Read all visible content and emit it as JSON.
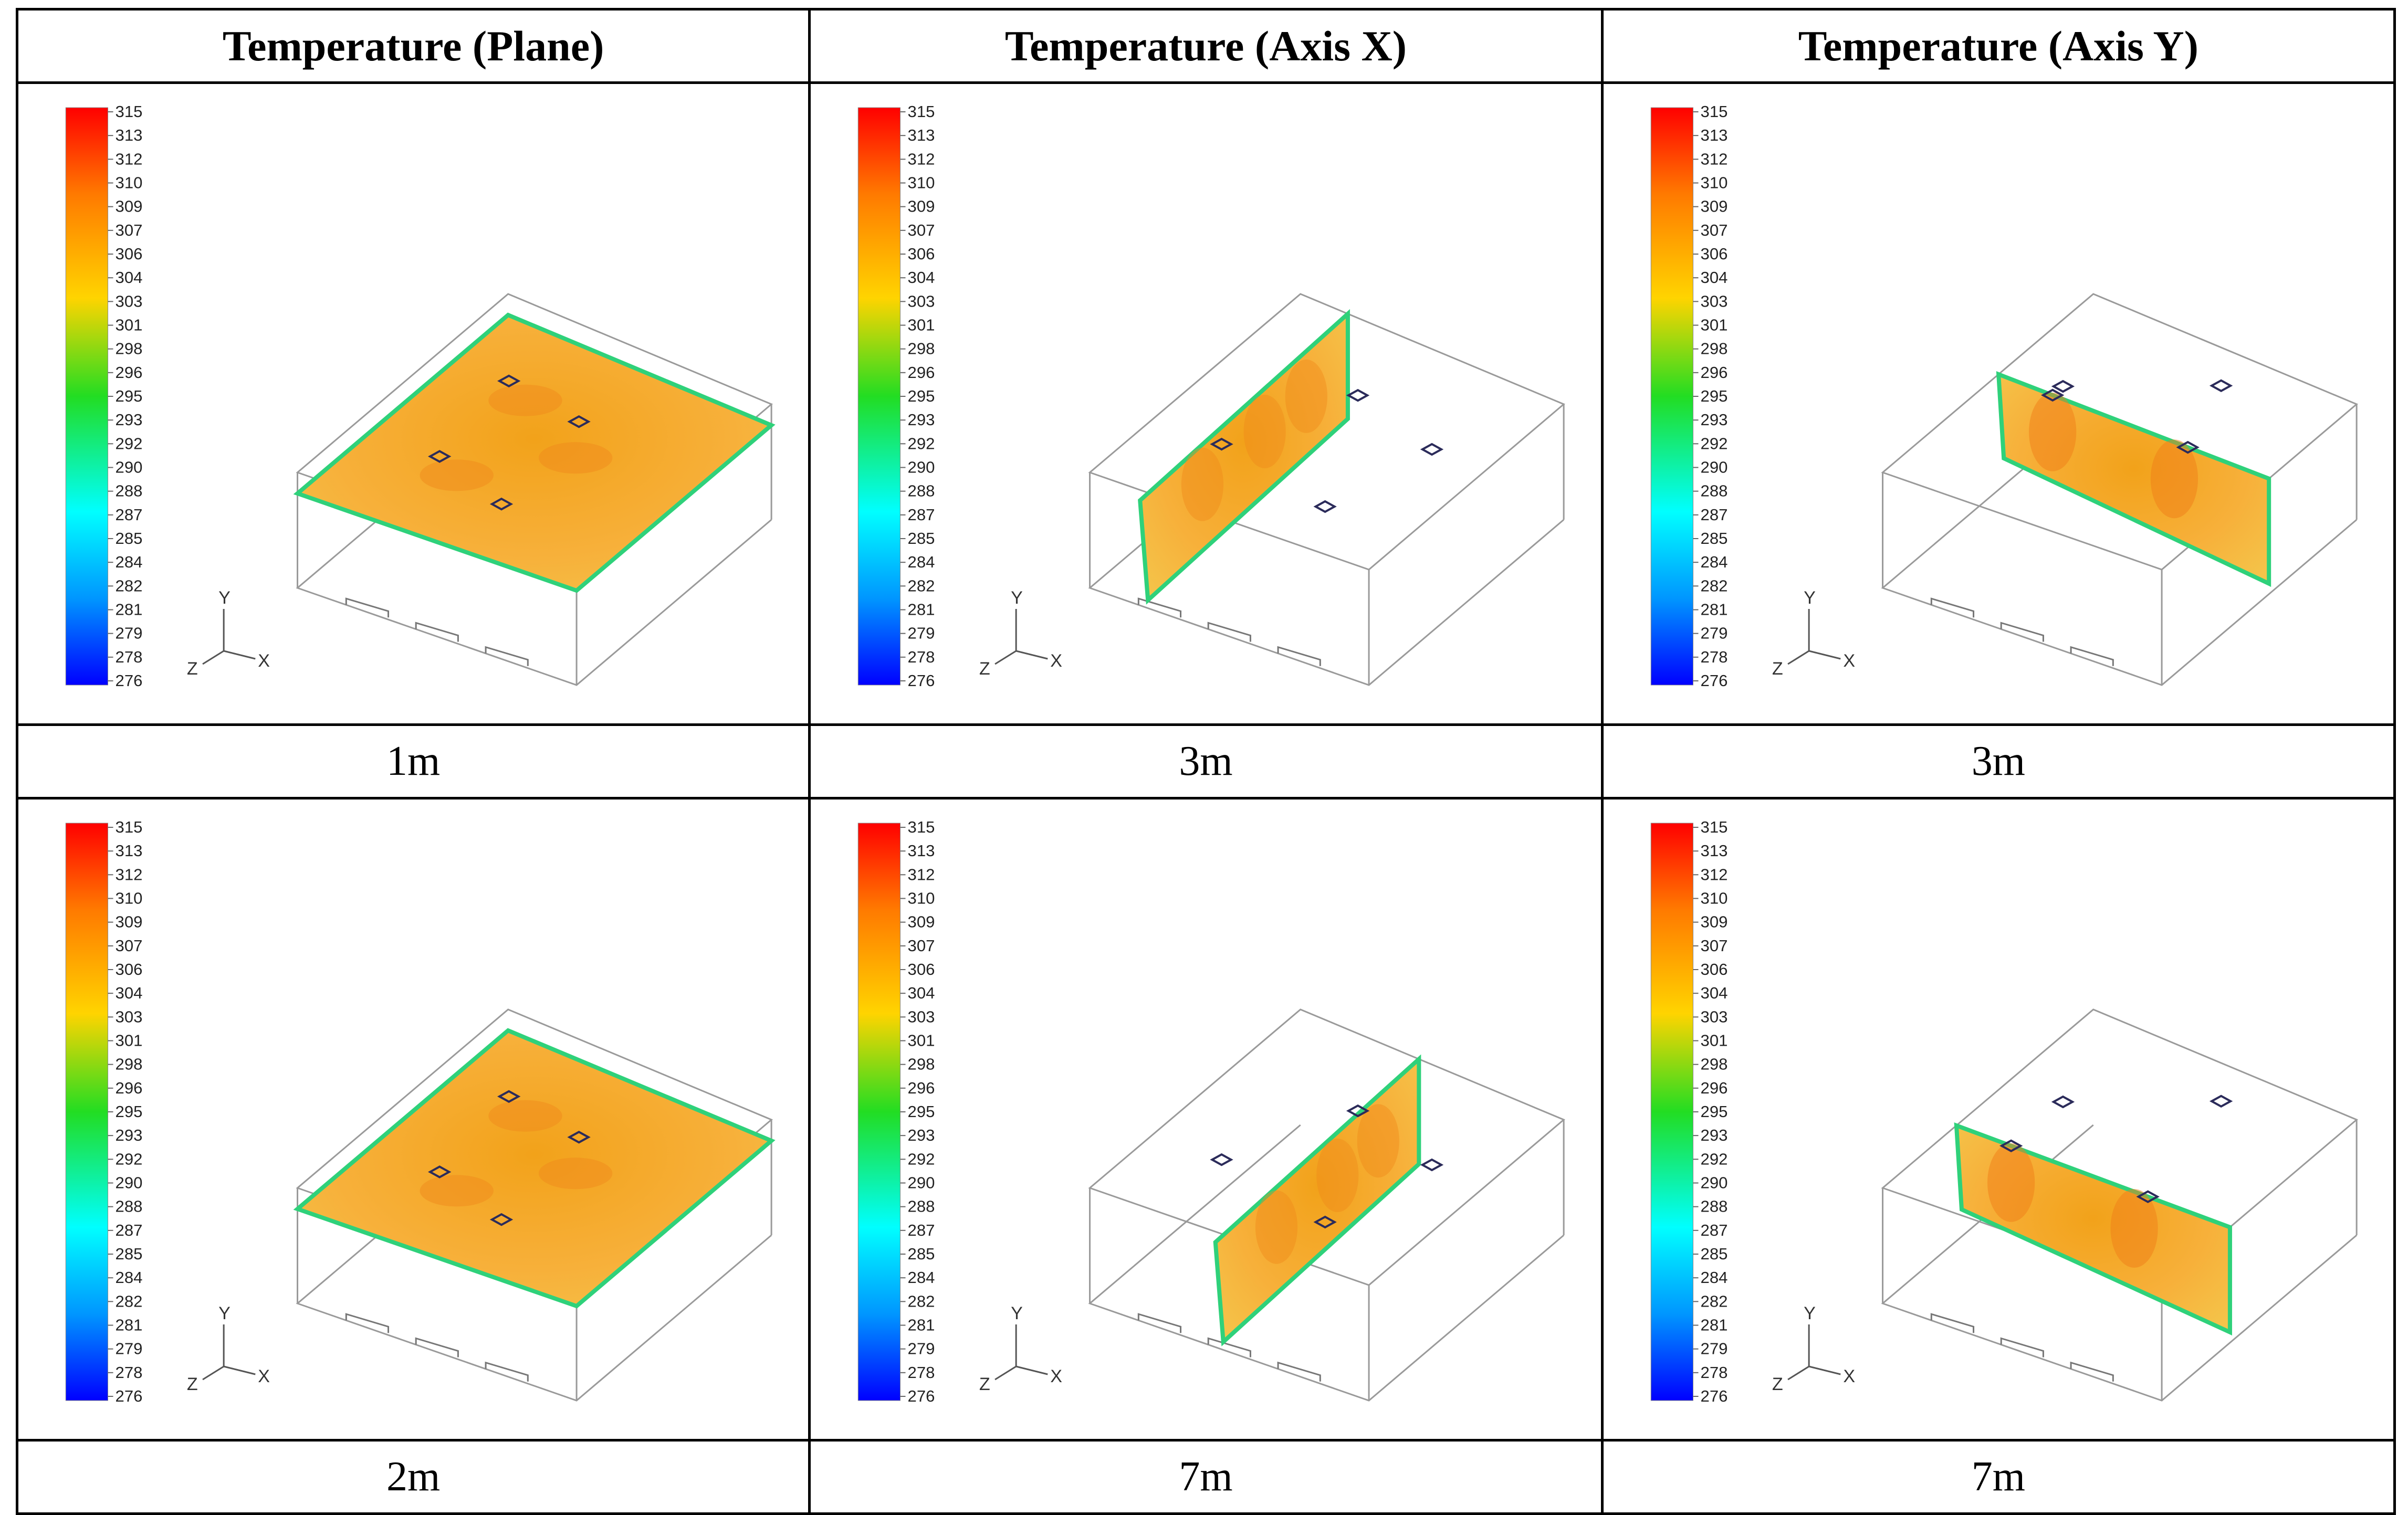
{
  "headers": [
    "Temperature (Plane)",
    "Temperature (Axis X)",
    "Temperature (Axis Y)"
  ],
  "rows": [
    {
      "captions": [
        "1m",
        "3m",
        "3m"
      ]
    },
    {
      "captions": [
        "2m",
        "7m",
        "7m"
      ]
    }
  ],
  "panels": [
    {
      "slice": "plane",
      "vent_style": "top"
    },
    {
      "slice": "x",
      "vent_style": "top"
    },
    {
      "slice": "y",
      "vent_style": "top"
    },
    {
      "slice": "plane",
      "vent_style": "on-slice"
    },
    {
      "slice": "x",
      "vent_style": "top"
    },
    {
      "slice": "y",
      "vent_style": "top"
    }
  ],
  "legend": {
    "values": [
      "315",
      "313",
      "312",
      "310",
      "309",
      "307",
      "306",
      "304",
      "303",
      "301",
      "298",
      "296",
      "295",
      "293",
      "292",
      "290",
      "288",
      "287",
      "285",
      "284",
      "282",
      "281",
      "279",
      "278",
      "276"
    ],
    "colors": {
      "max": "#ff0000",
      "mid": "#ffd400",
      "green": "#22dd22",
      "cyan": "#00ffff",
      "min": "#0000ff"
    }
  },
  "axes": {
    "x": "X",
    "y": "Y",
    "z": "Z"
  },
  "colors": {
    "slice_fill": "#f6a623",
    "slice_edge": "#2fd17a",
    "box_line": "#9a9a9a",
    "vent": "#2b2b5a"
  }
}
